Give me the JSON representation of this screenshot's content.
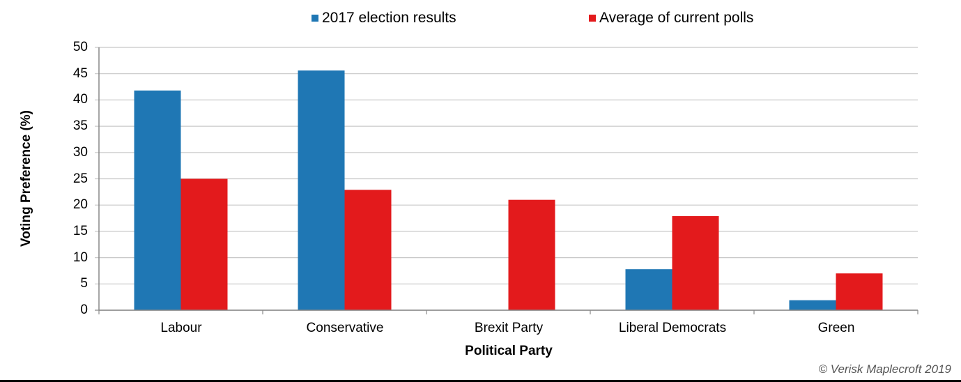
{
  "chart_data": {
    "type": "bar",
    "title": "",
    "xlabel": "Political Party",
    "ylabel": "Voting Preference (%)",
    "ylim": [
      0,
      50
    ],
    "yticks": [
      0,
      5,
      10,
      15,
      20,
      25,
      30,
      35,
      40,
      45,
      50
    ],
    "grid": true,
    "legend_position": "top",
    "categories": [
      "Labour",
      "Conservative",
      "Brexit Party",
      "Liberal Democrats",
      "Green"
    ],
    "series": [
      {
        "name": "2017 election results",
        "color": "#1f77b4",
        "values": [
          41.8,
          45.6,
          0,
          7.8,
          1.9
        ]
      },
      {
        "name": "Average of current polls",
        "color": "#e31a1c",
        "values": [
          25,
          22.9,
          21,
          17.9,
          7
        ]
      }
    ]
  },
  "legend": {
    "items": [
      {
        "label": "2017 election results",
        "color": "#1f77b4"
      },
      {
        "label": "Average of current polls",
        "color": "#e31a1c"
      }
    ]
  },
  "axes": {
    "xlabel": "Political Party",
    "ylabel": "Voting Preference (%)",
    "yticks": [
      "0",
      "5",
      "10",
      "15",
      "20",
      "25",
      "30",
      "35",
      "40",
      "45",
      "50"
    ],
    "xticks": [
      "Labour",
      "Conservative",
      "Brexit Party",
      "Liberal Democrats",
      "Green"
    ]
  },
  "credit": "© Verisk Maplecroft 2019"
}
